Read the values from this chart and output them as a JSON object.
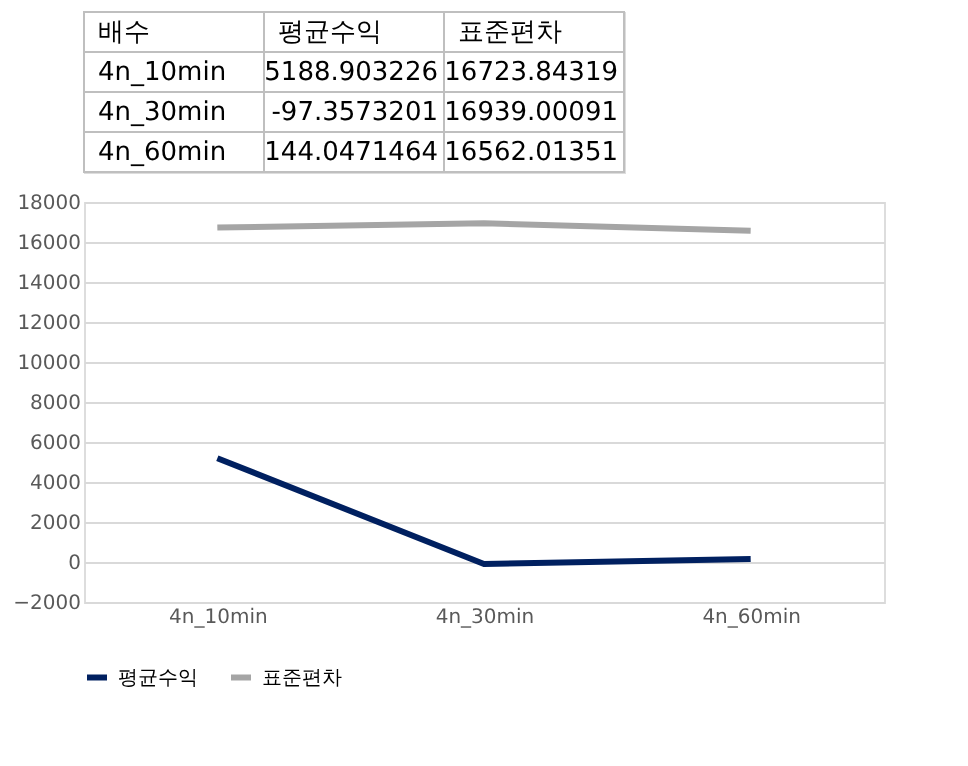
{
  "chart_data": [
    {
      "type": "other",
      "annotations": [
        "배수",
        "평균수익",
        "표준편차",
        "4n_10min",
        "5188.903226",
        "16723.84319",
        "4n_30min",
        "-97.3573201",
        "16939.00091",
        "4n_60min",
        "144.0471464",
        "16562.01351"
      ]
    },
    {
      "type": "line",
      "categories": [
        "4n_10min",
        "4n_30min",
        "4n_60min"
      ],
      "series": [
        {
          "name": "평균수익",
          "color": "#002060",
          "values": [
            5188.903226,
            -97.3573201,
            144.0471464
          ]
        },
        {
          "name": "표준편차",
          "color": "#a5a5a5",
          "values": [
            16723.84319,
            16939.00091,
            16562.01351
          ]
        }
      ],
      "ylim": [
        -2000,
        18000
      ],
      "yticks": [
        -2000,
        0,
        2000,
        4000,
        6000,
        8000,
        10000,
        12000,
        14000,
        16000,
        18000
      ],
      "grid": "y",
      "legend": "bottom",
      "marker": "none",
      "line_style": "solid"
    }
  ]
}
